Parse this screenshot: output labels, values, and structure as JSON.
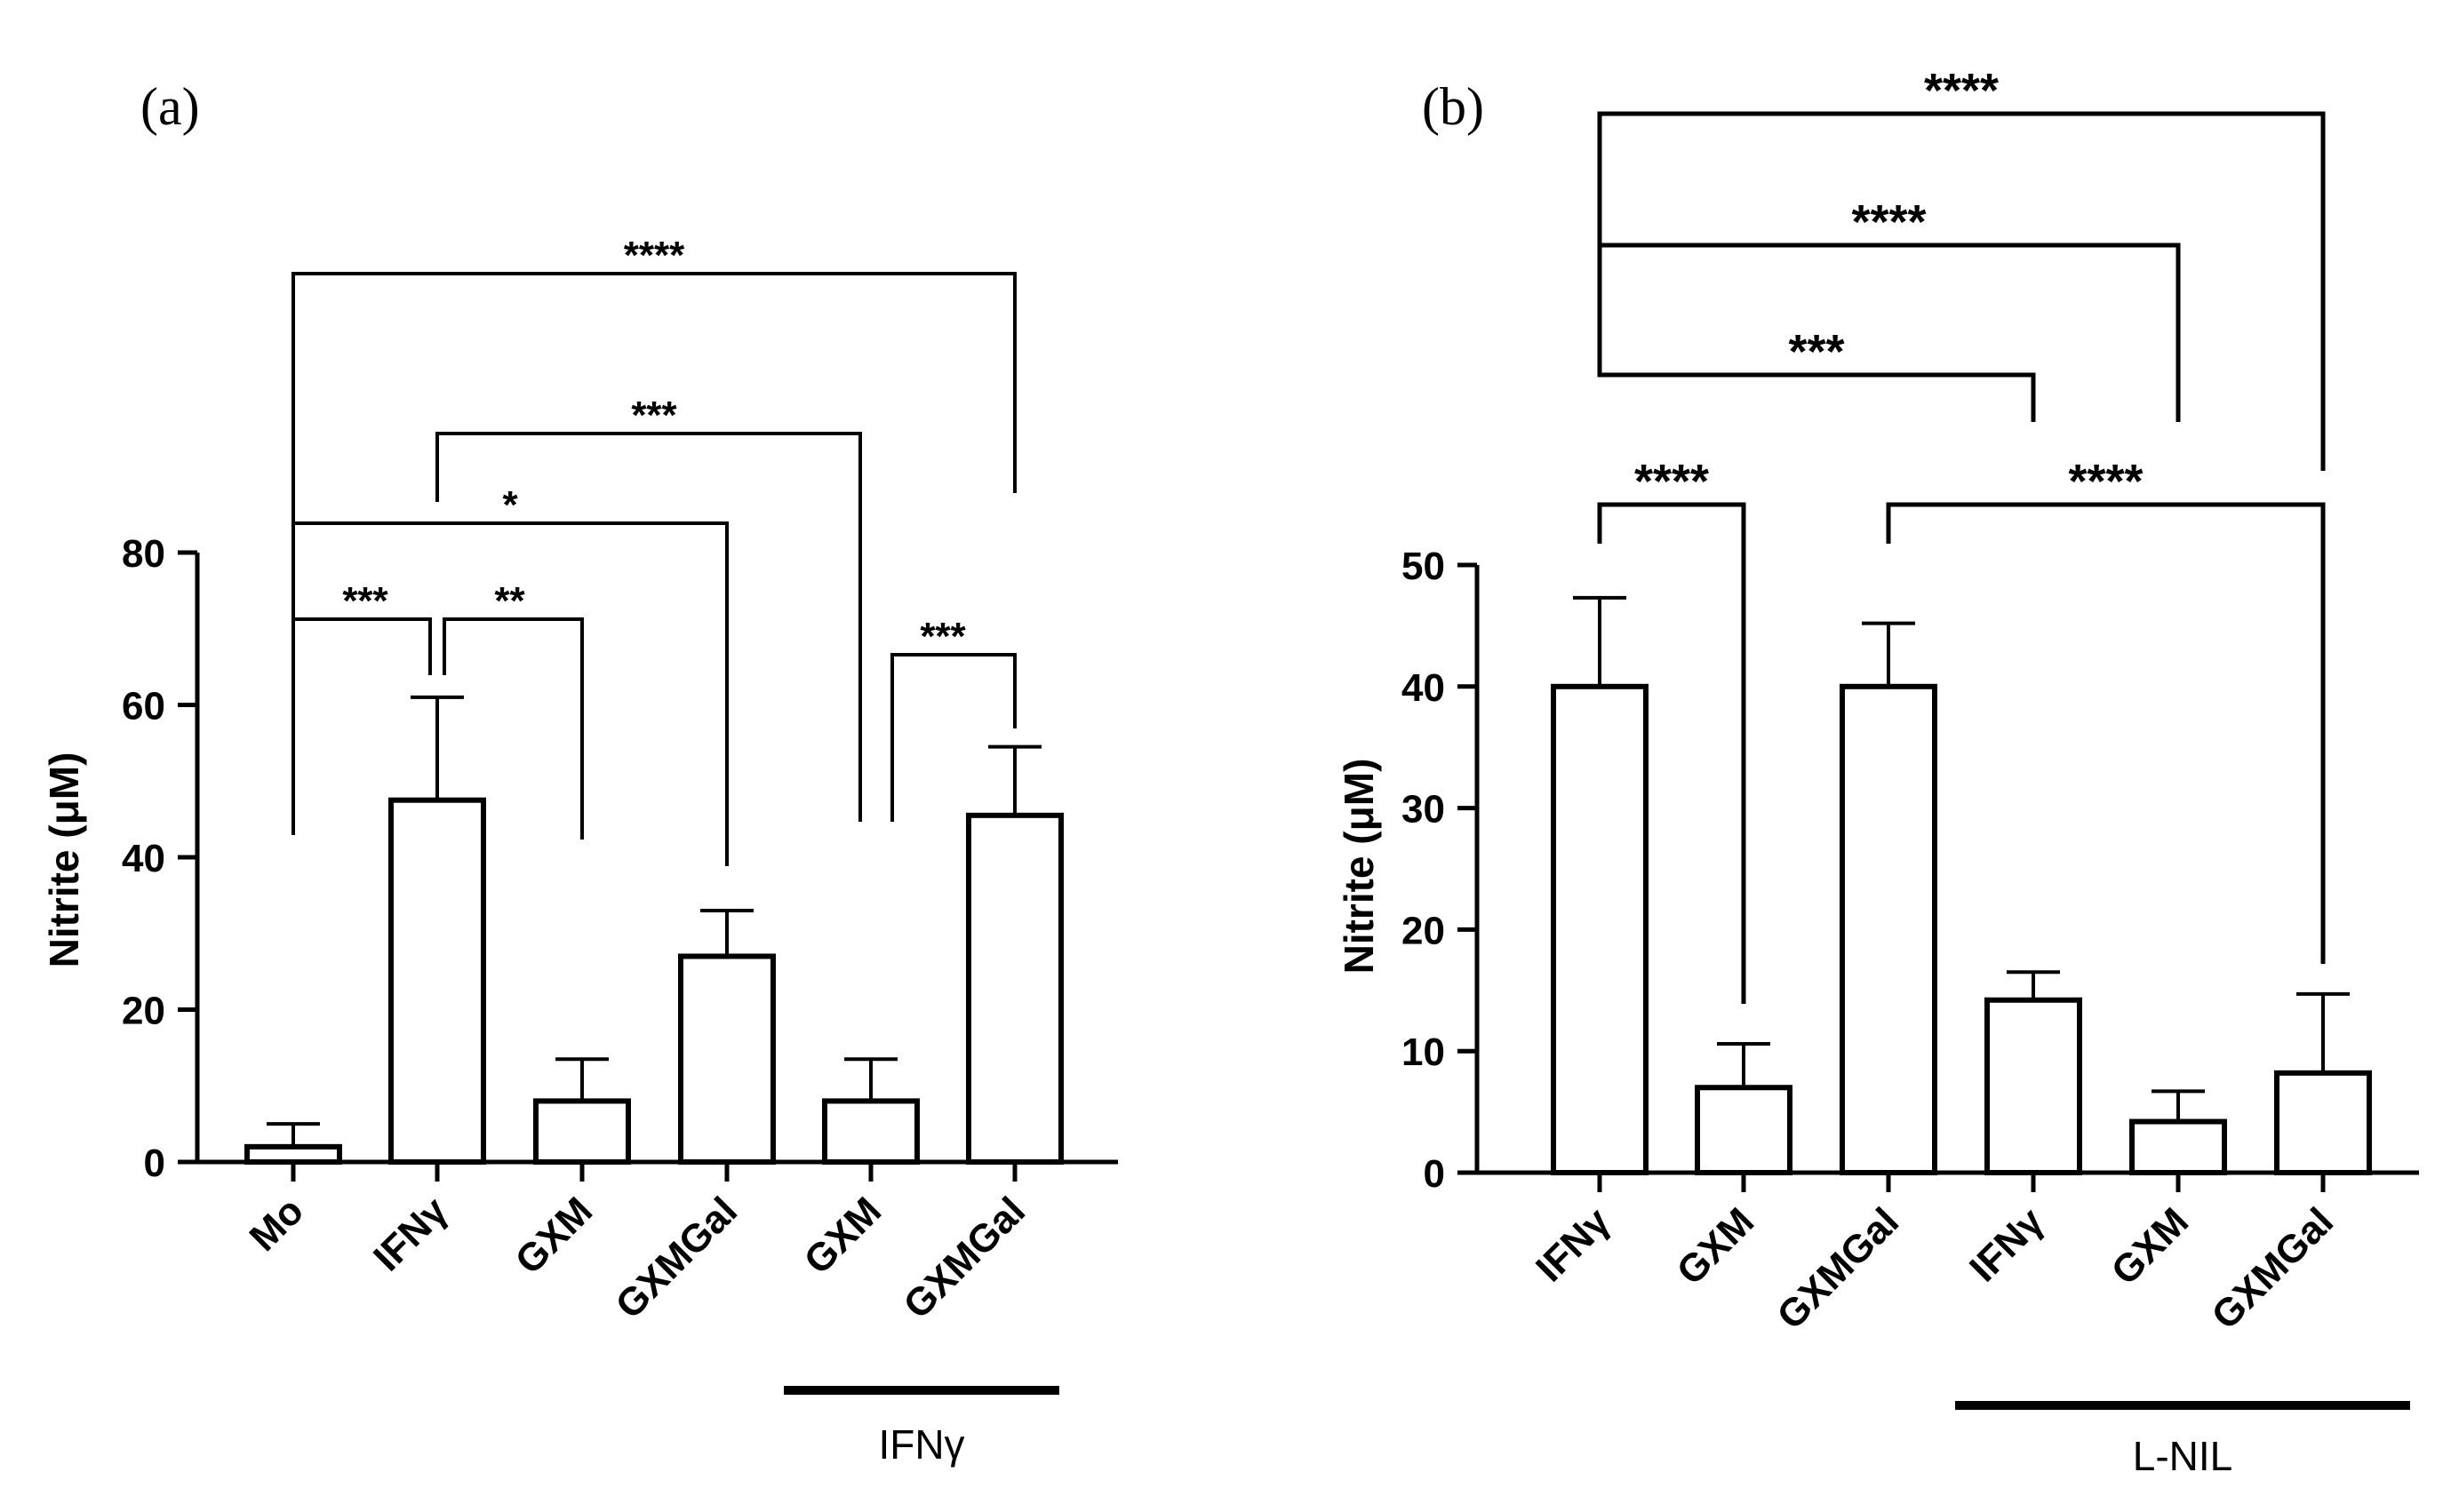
{
  "chart_data": [
    {
      "panel": "(a)",
      "type": "bar",
      "categories": [
        "Mo",
        "IFNγ",
        "GXM",
        "GXMGal",
        "GXM",
        "GXMGal"
      ],
      "values": [
        2,
        47.5,
        8,
        27,
        8,
        45.5
      ],
      "errors": [
        3,
        13.5,
        5.5,
        6,
        5.5,
        9
      ],
      "ylabel": "Nitrite (μM)",
      "xlabel": "",
      "ylim": [
        0,
        80
      ],
      "yticks": [
        0,
        20,
        40,
        60,
        80
      ],
      "group": {
        "label": "IFNγ",
        "from": 4,
        "to": 5
      },
      "significance": [
        {
          "from": 0,
          "to": 1,
          "label": "***"
        },
        {
          "from": 1,
          "to": 2,
          "label": "**"
        },
        {
          "from": 0,
          "to": 3,
          "label": "*"
        },
        {
          "from": 1,
          "to": 4,
          "label": "***"
        },
        {
          "from": 4,
          "to": 5,
          "label": "***"
        },
        {
          "from": 0,
          "to": 5,
          "label": "****"
        }
      ]
    },
    {
      "panel": "(b)",
      "type": "bar",
      "categories": [
        "IFNγ",
        "GXM",
        "GXMGal",
        "IFNγ",
        "GXM",
        "GXMGal"
      ],
      "values": [
        40,
        7,
        40,
        14.2,
        4.2,
        8.2
      ],
      "errors": [
        7.3,
        3.6,
        5.2,
        2.3,
        2.5,
        6.5
      ],
      "ylabel": "Nitrite (μM)",
      "xlabel": "",
      "ylim": [
        0,
        50
      ],
      "yticks": [
        0,
        10,
        20,
        30,
        40,
        50
      ],
      "group": {
        "label": "L-NIL",
        "from": 3,
        "to": 5
      },
      "significance": [
        {
          "from": 0,
          "to": 1,
          "label": "****"
        },
        {
          "from": 2,
          "to": 5,
          "label": "****"
        },
        {
          "from": 0,
          "to": 3,
          "label": "***"
        },
        {
          "from": 0,
          "to": 4,
          "label": "****"
        },
        {
          "from": 0,
          "to": 5,
          "label": "****"
        }
      ]
    }
  ]
}
